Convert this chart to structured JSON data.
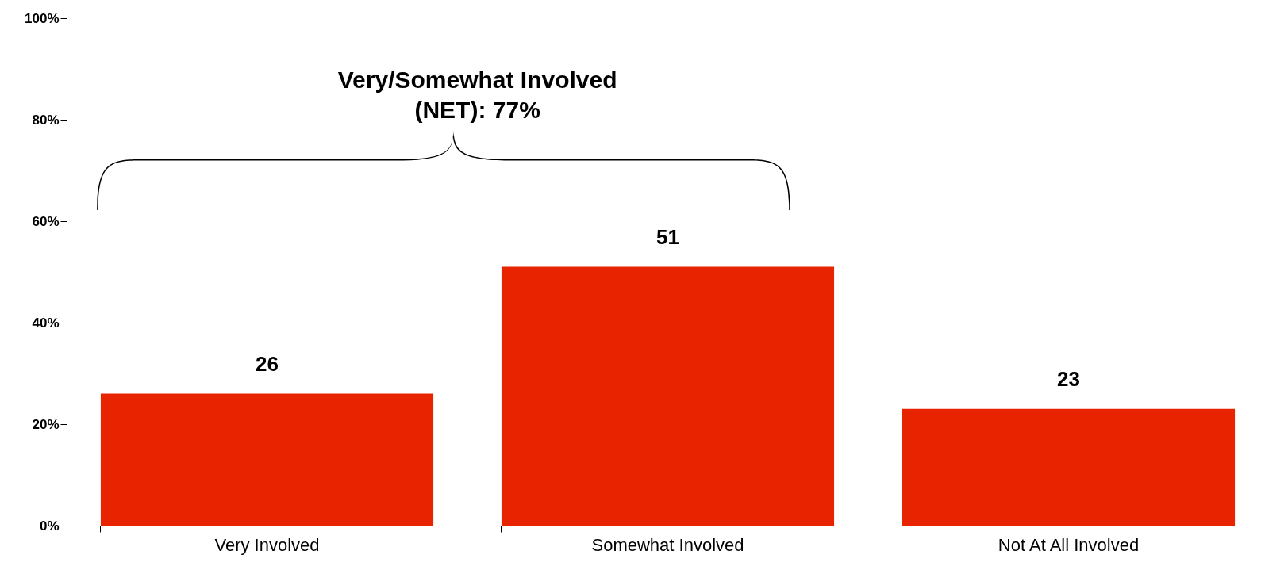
{
  "chart_data": {
    "type": "bar",
    "categories": [
      "Very Involved",
      "Somewhat Involved",
      "Not At All Involved"
    ],
    "values": [
      26,
      51,
      23
    ],
    "color": "#e82400",
    "ylim": [
      0,
      100
    ],
    "yticks": [
      {
        "value": 0,
        "label": "0%"
      },
      {
        "value": 20,
        "label": "20%"
      },
      {
        "value": 40,
        "label": "40%"
      },
      {
        "value": 60,
        "label": "60%"
      },
      {
        "value": 80,
        "label": "80%"
      },
      {
        "value": 100,
        "label": "100%"
      }
    ],
    "grid": false,
    "data_labels": true,
    "annotations": [
      "Very/Somewhat Involved (NET): 77%"
    ]
  }
}
